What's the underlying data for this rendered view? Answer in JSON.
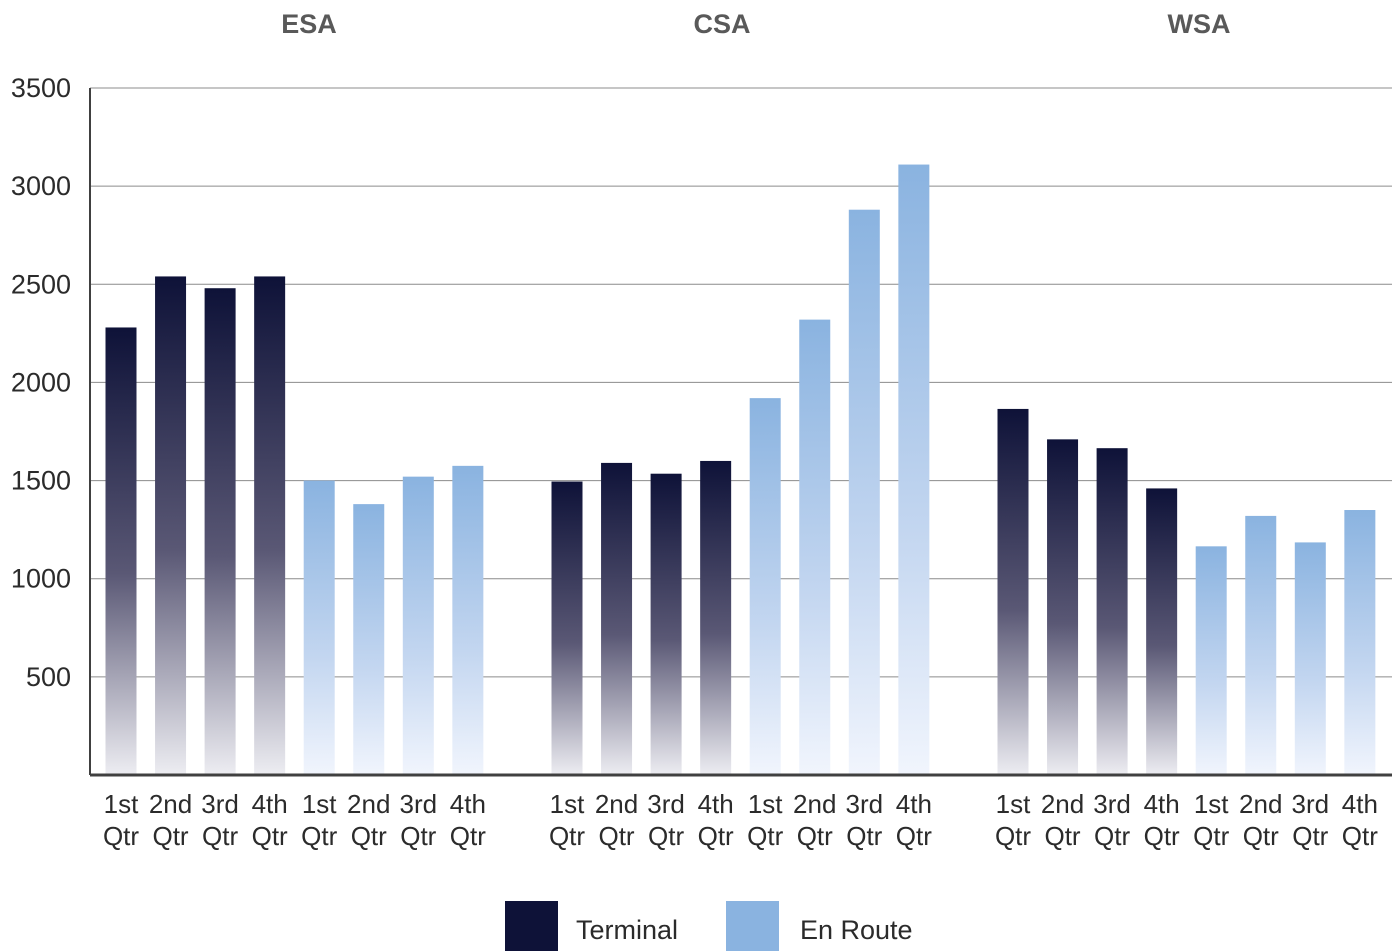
{
  "chart_data": {
    "type": "bar",
    "title": "",
    "xlabel": "",
    "ylabel": "",
    "ylim": [
      0,
      3500
    ],
    "yticks": [
      "500",
      "1000",
      "1500",
      "2000",
      "2500",
      "3000",
      "3500"
    ],
    "grid": true,
    "legend_position": "bottom",
    "colors": {
      "Terminal": "#0e1238",
      "En Route": "#8ab3e0"
    },
    "groups": [
      {
        "name": "ESA",
        "categories": [
          "1st Qtr",
          "2nd Qtr",
          "3rd Qtr",
          "4th Qtr"
        ],
        "series": [
          {
            "name": "Terminal",
            "values": [
              2280,
              2540,
              2480,
              2540
            ]
          },
          {
            "name": "En Route",
            "values": [
              1500,
              1380,
              1520,
              1575
            ]
          }
        ]
      },
      {
        "name": "CSA",
        "categories": [
          "1st Qtr",
          "2nd Qtr",
          "3rd Qtr",
          "4th Qtr"
        ],
        "series": [
          {
            "name": "Terminal",
            "values": [
              1495,
              1590,
              1535,
              1600
            ]
          },
          {
            "name": "En Route",
            "values": [
              1920,
              2320,
              2880,
              3110
            ]
          }
        ]
      },
      {
        "name": "WSA",
        "categories": [
          "1st Qtr",
          "2nd Qtr",
          "3rd Qtr",
          "4th Qtr"
        ],
        "series": [
          {
            "name": "Terminal",
            "values": [
              1865,
              1710,
              1665,
              1460
            ]
          },
          {
            "name": "En Route",
            "values": [
              1165,
              1320,
              1185,
              1350
            ]
          }
        ]
      }
    ],
    "legend": [
      "Terminal",
      "En Route"
    ]
  }
}
